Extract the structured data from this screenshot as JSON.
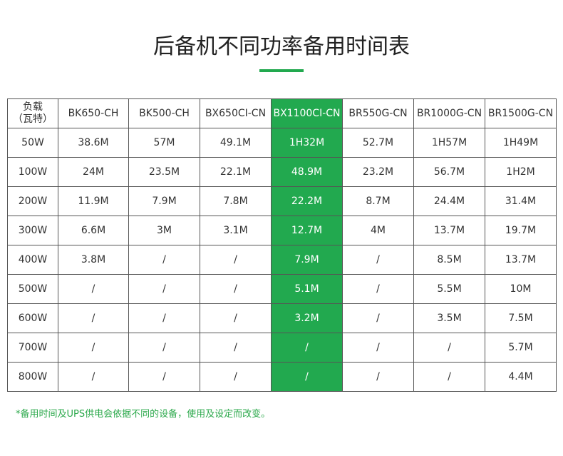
{
  "header": {
    "title": "后备机不同功率备用时间表"
  },
  "table": {
    "columns": [
      "负载\n（瓦特）",
      "BK650-CH",
      "BK500-CH",
      "BX650CI-CN",
      "BX1100CI-CN",
      "BR550G-CN",
      "BR1000G-CN",
      "BR1500G-CN"
    ],
    "rows": [
      [
        "50W",
        "38.6M",
        "57M",
        "49.1M",
        "1H32M",
        "52.7M",
        "1H57M",
        "1H49M"
      ],
      [
        "100W",
        "24M",
        "23.5M",
        "22.1M",
        "48.9M",
        "23.2M",
        "56.7M",
        "1H2M"
      ],
      [
        "200W",
        "11.9M",
        "7.9M",
        "7.8M",
        "22.2M",
        "8.7M",
        "24.4M",
        "31.4M"
      ],
      [
        "300W",
        "6.6M",
        "3M",
        "3.1M",
        "12.7M",
        "4M",
        "13.7M",
        "19.7M"
      ],
      [
        "400W",
        "3.8M",
        "/",
        "/",
        "7.9M",
        "/",
        "8.5M",
        "13.7M"
      ],
      [
        "500W",
        "/",
        "/",
        "/",
        "5.1M",
        "/",
        "5.5M",
        "10M"
      ],
      [
        "600W",
        "/",
        "/",
        "/",
        "3.2M",
        "/",
        "3.5M",
        "7.5M"
      ],
      [
        "700W",
        "/",
        "/",
        "/",
        "/",
        "/",
        "/",
        "5.7M"
      ],
      [
        "800W",
        "/",
        "/",
        "/",
        "/",
        "/",
        "/",
        "4.4M"
      ]
    ]
  },
  "footnote": "*备用时间及UPS供电会依据不同的设备，使用及设定而改变。"
}
